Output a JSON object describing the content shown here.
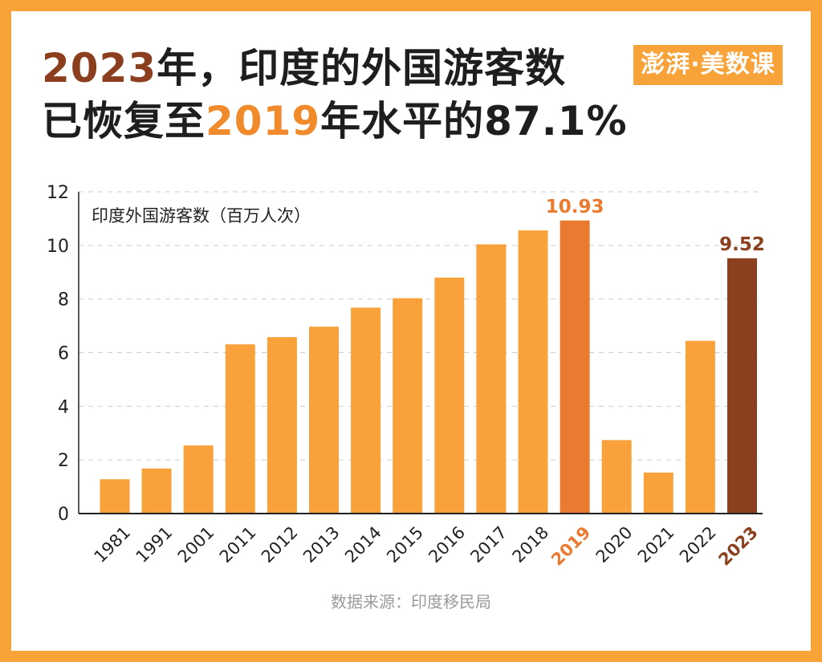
{
  "title": {
    "line1_year": "2023",
    "line1_rest": "年，印度的外国游客数",
    "line2_prefix": "已恢复至",
    "line2_year": "2019",
    "line2_suffix": "年水平的87.1%"
  },
  "logo": {
    "text": "澎湃·美数课"
  },
  "source": "数据来源：印度移民局",
  "colors": {
    "frame": "#f7a33a",
    "bar_default": "#f9a23c",
    "bar_2019": "#ea7a30",
    "bar_2023": "#8b3f1f",
    "axis": "#222222",
    "grid": "#cccccc"
  },
  "chart_data": {
    "type": "bar",
    "ylabel": "印度外国游客数（百万人次）",
    "ylim": [
      0,
      12
    ],
    "yticks": [
      0,
      2,
      4,
      6,
      8,
      10,
      12
    ],
    "grid": true,
    "categories": [
      "1981",
      "1991",
      "2001",
      "2011",
      "2012",
      "2013",
      "2014",
      "2015",
      "2016",
      "2017",
      "2018",
      "2019",
      "2020",
      "2021",
      "2022",
      "2023"
    ],
    "values": [
      1.28,
      1.68,
      2.54,
      6.31,
      6.58,
      6.97,
      7.68,
      8.03,
      8.8,
      10.04,
      10.56,
      10.93,
      2.74,
      1.53,
      6.44,
      9.52
    ],
    "data_labels": {
      "2019": "10.93",
      "2023": "9.52"
    },
    "highlight": {
      "2019": "bar_2019",
      "2023": "bar_2023"
    }
  }
}
